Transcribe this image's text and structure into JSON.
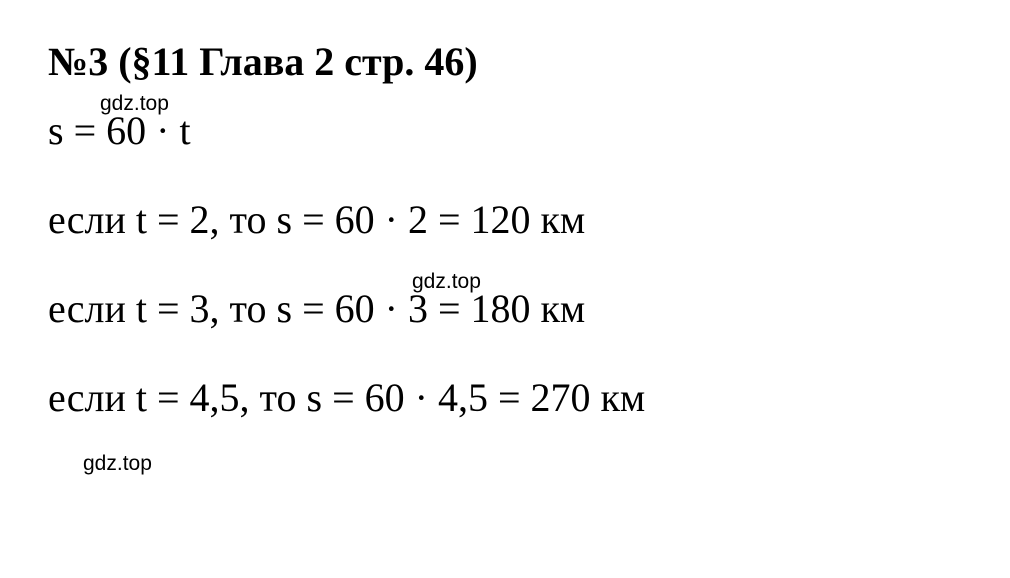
{
  "heading": "№3 (§11 Глава 2  стр. 46)",
  "watermark": "gdz.top",
  "formula": "s = 60 · t",
  "lines": [
    "если t = 2, то s = 60 · 2 = 120 км",
    "если t = 3, то s = 60 · 3 = 180 км",
    "если t = 4,5, то s = 60 · 4,5 = 270 км"
  ],
  "colors": {
    "background": "#ffffff",
    "text": "#000000"
  },
  "typography": {
    "heading_fontsize": 40,
    "heading_fontweight": "bold",
    "body_fontsize": 40,
    "body_fontweight": "normal",
    "watermark_fontsize": 21,
    "font_family_main": "Times New Roman",
    "font_family_watermark": "Arial"
  }
}
